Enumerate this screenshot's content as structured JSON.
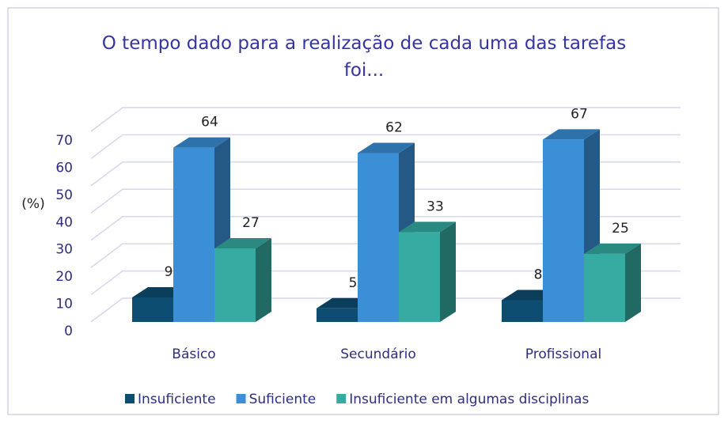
{
  "chart_data": {
    "type": "bar3d",
    "title": "O tempo dado para a realização de cada uma das tarefas foi...",
    "y_label": "(%)",
    "categories": [
      "Básico",
      "Secundário",
      "Profissional"
    ],
    "series": [
      {
        "name": "Insuficiente",
        "color": "#0e4d72",
        "values": [
          9,
          5,
          8
        ]
      },
      {
        "name": "Suficiente",
        "color": "#3a8fd6",
        "values": [
          64,
          62,
          67
        ]
      },
      {
        "name": "Insuficiente em algumas disciplinas",
        "color": "#35aba1",
        "values": [
          27,
          33,
          25
        ]
      }
    ],
    "ylim": [
      0,
      70
    ],
    "yticks": [
      0,
      10,
      20,
      30,
      40,
      50,
      60,
      70
    ],
    "grid": true,
    "legend": "bottom"
  }
}
